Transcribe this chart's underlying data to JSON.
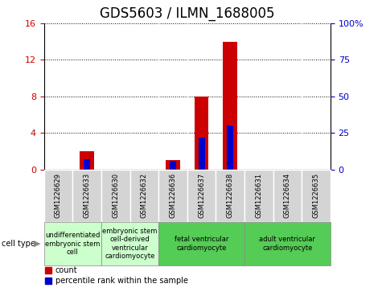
{
  "title": "GDS5603 / ILMN_1688005",
  "samples": [
    "GSM1226629",
    "GSM1226633",
    "GSM1226630",
    "GSM1226632",
    "GSM1226636",
    "GSM1226637",
    "GSM1226638",
    "GSM1226631",
    "GSM1226634",
    "GSM1226635"
  ],
  "counts": [
    0,
    2,
    0,
    0,
    1,
    8,
    14,
    0,
    0,
    0
  ],
  "percentile_ranks": [
    0,
    7,
    0,
    0,
    6,
    22,
    30,
    0,
    0,
    0
  ],
  "ylim_left": [
    0,
    16
  ],
  "ylim_right": [
    0,
    100
  ],
  "yticks_left": [
    0,
    4,
    8,
    12,
    16
  ],
  "yticks_right": [
    0,
    25,
    50,
    75,
    100
  ],
  "ytick_right_labels": [
    "0",
    "25",
    "50",
    "75",
    "100%"
  ],
  "cell_groups": [
    {
      "label": "undifferentiated\nembryonic stem\ncell",
      "start": 0,
      "end": 2,
      "color": "#ccffcc"
    },
    {
      "label": "embryonic stem\ncell-derived\nventricular\ncardiomyocyte",
      "start": 2,
      "end": 4,
      "color": "#ccffcc"
    },
    {
      "label": "fetal ventricular\ncardiomyocyte",
      "start": 4,
      "end": 7,
      "color": "#55cc55"
    },
    {
      "label": "adult ventricular\ncardiomyocyte",
      "start": 7,
      "end": 10,
      "color": "#55cc55"
    }
  ],
  "cell_type_label": "cell type",
  "legend_count_label": "count",
  "legend_percentile_label": "percentile rank within the sample",
  "bar_color_count": "#cc0000",
  "bar_color_percentile": "#0000cc",
  "bar_width": 0.5,
  "bg_color_plot": "#ffffff",
  "bg_color_samples": "#d4d4d4",
  "title_fontsize": 12,
  "tick_fontsize": 8,
  "sample_fontsize": 6,
  "cell_label_fontsize": 6,
  "legend_fontsize": 7
}
